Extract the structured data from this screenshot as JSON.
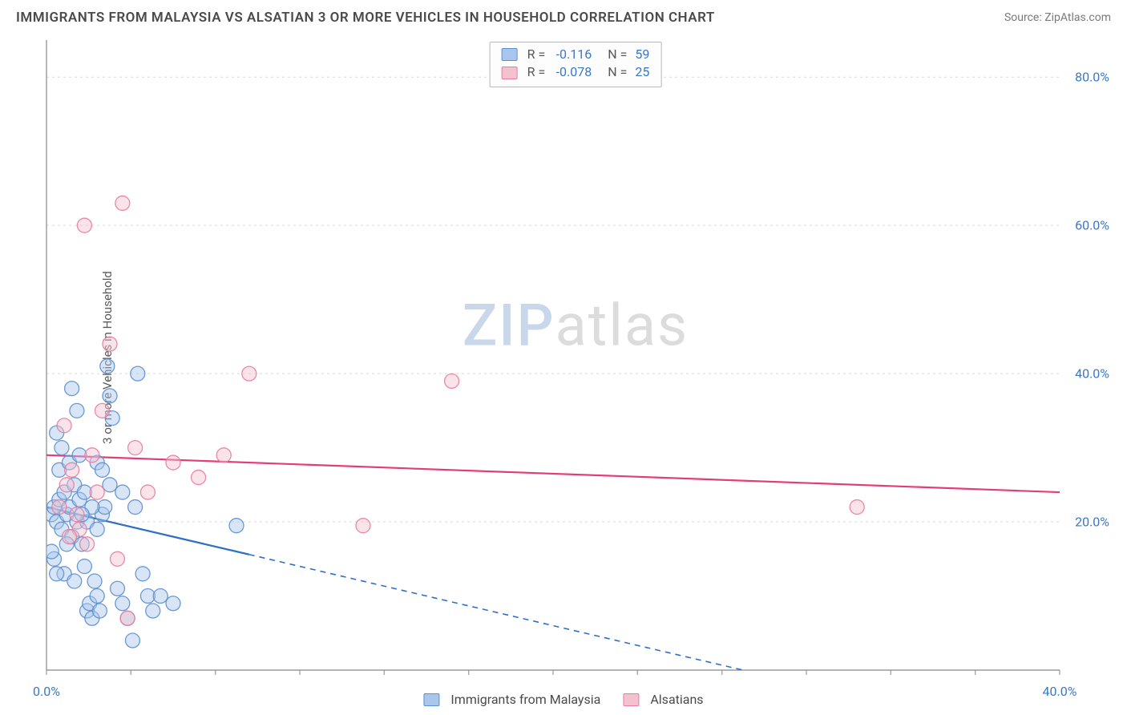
{
  "header": {
    "title": "IMMIGRANTS FROM MALAYSIA VS ALSATIAN 3 OR MORE VEHICLES IN HOUSEHOLD CORRELATION CHART",
    "source_prefix": "Source: ",
    "source_name": "ZipAtlas.com"
  },
  "watermark": {
    "part1": "ZIP",
    "part2": "atlas"
  },
  "chart": {
    "type": "scatter",
    "background_color": "#ffffff",
    "grid_color": "#d9d9d9",
    "axis_color": "#888888",
    "tick_color": "#888888",
    "tick_label_color": "#3878c7",
    "axis_label_color": "#5a5a5a",
    "ylabel": "3 or more Vehicles in Household",
    "xlim": [
      0,
      40
    ],
    "ylim": [
      0,
      85
    ],
    "x_ticks": [
      0,
      3.33,
      6.67,
      10,
      13.33,
      16.67,
      20,
      23.33,
      26.67,
      30,
      33.33,
      36.67,
      40
    ],
    "x_tick_labels": {
      "0": "0.0%",
      "40": "40.0%"
    },
    "y_gridlines": [
      20,
      40,
      60,
      80
    ],
    "y_tick_labels": {
      "20": "20.0%",
      "40": "40.0%",
      "60": "60.0%",
      "80": "80.0%"
    },
    "marker_radius": 9,
    "marker_opacity": 0.45,
    "marker_stroke_opacity": 0.9,
    "series": [
      {
        "name": "Immigrants from Malaysia",
        "fill_color": "#a9c6ec",
        "stroke_color": "#5b8fd0",
        "trend_color": "#2f6fc4",
        "trend": {
          "y_at_xmin": 22.0,
          "y_at_xmax": -10.0,
          "solid_until_x": 8.0
        },
        "points": [
          [
            0.2,
            21
          ],
          [
            0.3,
            22
          ],
          [
            0.4,
            20
          ],
          [
            0.5,
            23
          ],
          [
            0.6,
            19
          ],
          [
            0.7,
            24
          ],
          [
            0.8,
            21
          ],
          [
            0.9,
            22
          ],
          [
            1.0,
            18
          ],
          [
            1.1,
            25
          ],
          [
            1.2,
            20
          ],
          [
            1.3,
            23
          ],
          [
            1.4,
            17
          ],
          [
            1.5,
            14
          ],
          [
            1.6,
            8
          ],
          [
            1.7,
            9
          ],
          [
            1.8,
            7
          ],
          [
            1.9,
            12
          ],
          [
            2.0,
            10
          ],
          [
            2.1,
            8
          ],
          [
            2.2,
            21
          ],
          [
            2.3,
            22
          ],
          [
            2.4,
            41
          ],
          [
            2.5,
            37
          ],
          [
            2.6,
            34
          ],
          [
            2.8,
            11
          ],
          [
            3.0,
            9
          ],
          [
            3.2,
            7
          ],
          [
            3.4,
            4
          ],
          [
            3.6,
            40
          ],
          [
            3.8,
            13
          ],
          [
            4.0,
            10
          ],
          [
            4.2,
            8
          ],
          [
            0.3,
            15
          ],
          [
            0.5,
            27
          ],
          [
            0.7,
            13
          ],
          [
            0.9,
            28
          ],
          [
            1.1,
            12
          ],
          [
            1.3,
            29
          ],
          [
            0.4,
            32
          ],
          [
            0.6,
            30
          ],
          [
            2.0,
            28
          ],
          [
            2.2,
            27
          ],
          [
            2.5,
            25
          ],
          [
            3.0,
            24
          ],
          [
            3.5,
            22
          ],
          [
            1.0,
            38
          ],
          [
            1.2,
            35
          ],
          [
            1.6,
            20
          ],
          [
            1.8,
            22
          ],
          [
            2.0,
            19
          ],
          [
            4.5,
            10
          ],
          [
            5.0,
            9
          ],
          [
            1.4,
            21
          ],
          [
            1.5,
            24
          ],
          [
            0.8,
            17
          ],
          [
            0.2,
            16
          ],
          [
            0.4,
            13
          ],
          [
            7.5,
            19.5
          ]
        ]
      },
      {
        "name": "Alsatians",
        "fill_color": "#f4c1cf",
        "stroke_color": "#e67da0",
        "trend_color": "#e23d78",
        "trend": {
          "y_at_xmin": 29.0,
          "y_at_xmax": 24.0,
          "solid_until_x": 40.0
        },
        "points": [
          [
            0.5,
            22
          ],
          [
            0.8,
            25
          ],
          [
            1.0,
            27
          ],
          [
            1.3,
            19
          ],
          [
            1.6,
            17
          ],
          [
            1.8,
            29
          ],
          [
            2.0,
            24
          ],
          [
            2.2,
            35
          ],
          [
            2.5,
            44
          ],
          [
            3.0,
            63
          ],
          [
            1.5,
            60
          ],
          [
            3.5,
            30
          ],
          [
            4.0,
            24
          ],
          [
            5.0,
            28
          ],
          [
            6.0,
            26
          ],
          [
            7.0,
            29
          ],
          [
            8.0,
            40
          ],
          [
            12.5,
            19.5
          ],
          [
            16.0,
            39
          ],
          [
            3.2,
            7
          ],
          [
            2.8,
            15
          ],
          [
            1.2,
            21
          ],
          [
            0.7,
            33
          ],
          [
            0.9,
            18
          ],
          [
            32.0,
            22
          ]
        ]
      }
    ]
  },
  "stats_box": {
    "rows": [
      {
        "swatch_fill": "#a9c6ec",
        "swatch_stroke": "#5b8fd0",
        "r_label": "R =",
        "r_value": "-0.116",
        "n_label": "N =",
        "n_value": "59"
      },
      {
        "swatch_fill": "#f4c1cf",
        "swatch_stroke": "#e67da0",
        "r_label": "R =",
        "r_value": "-0.078",
        "n_label": "N =",
        "n_value": "25"
      }
    ]
  },
  "bottom_legend": {
    "items": [
      {
        "swatch_fill": "#a9c6ec",
        "swatch_stroke": "#5b8fd0",
        "label": "Immigrants from Malaysia"
      },
      {
        "swatch_fill": "#f4c1cf",
        "swatch_stroke": "#e67da0",
        "label": "Alsatians"
      }
    ]
  }
}
